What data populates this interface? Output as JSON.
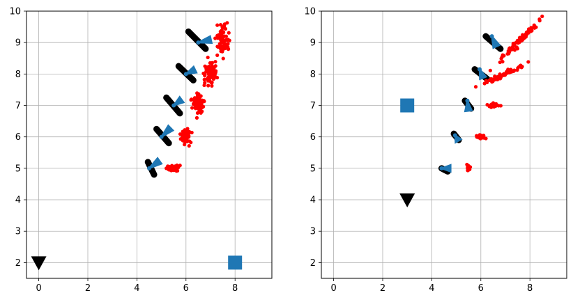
{
  "chart_data": [
    {
      "type": "scatter",
      "xlim": [
        -0.5,
        9.5
      ],
      "ylim": [
        1.5,
        10.0
      ],
      "xticks": [
        0,
        2,
        4,
        6,
        8
      ],
      "yticks": [
        2,
        3,
        4,
        5,
        6,
        7,
        8,
        9,
        10
      ],
      "grid": true,
      "markers": [
        {
          "shape": "triangle-down",
          "x": 0,
          "y": 2,
          "color": "#000000"
        },
        {
          "shape": "square",
          "x": 8,
          "y": 2,
          "color": "#1f77b4"
        }
      ],
      "clusters": [
        {
          "center": [
            5.5,
            5.0
          ],
          "spread": [
            0.14,
            0.08
          ],
          "angle": 0,
          "count": 45
        },
        {
          "center": [
            6.0,
            6.0
          ],
          "spread": [
            0.12,
            0.18
          ],
          "angle": 0,
          "count": 50
        },
        {
          "center": [
            6.5,
            7.0
          ],
          "spread": [
            0.12,
            0.28
          ],
          "angle": 0,
          "count": 70
        },
        {
          "center": [
            7.0,
            8.0
          ],
          "spread": [
            0.13,
            0.35
          ],
          "angle": 0,
          "count": 80
        },
        {
          "center": [
            7.5,
            9.1
          ],
          "spread": [
            0.12,
            0.4
          ],
          "angle": 0,
          "count": 80
        }
      ],
      "trajectories": [
        {
          "x1": 4.45,
          "y1": 5.2,
          "x2": 4.7,
          "y2": 4.8
        },
        {
          "x1": 4.8,
          "y1": 6.25,
          "x2": 5.3,
          "y2": 5.8
        },
        {
          "x1": 5.2,
          "y1": 7.25,
          "x2": 5.75,
          "y2": 6.75
        },
        {
          "x1": 5.7,
          "y1": 8.25,
          "x2": 6.3,
          "y2": 7.8
        },
        {
          "x1": 6.1,
          "y1": 9.35,
          "x2": 6.8,
          "y2": 8.8
        }
      ],
      "arrows": [
        {
          "x": 4.5,
          "y": 5.0,
          "dx": 0.45,
          "dy": 0.25
        },
        {
          "x": 5.0,
          "y": 6.0,
          "dx": 0.4,
          "dy": 0.3
        },
        {
          "x": 5.5,
          "y": 7.0,
          "dx": 0.35,
          "dy": 0.2
        },
        {
          "x": 6.0,
          "y": 8.0,
          "dx": 0.4,
          "dy": 0.15
        },
        {
          "x": 6.5,
          "y": 9.0,
          "dx": 0.55,
          "dy": 0.1
        }
      ],
      "colors": {
        "points": "#ff0000",
        "trajectory": "#000000",
        "arrow": "#1f77b4",
        "grid": "#b0b0b0"
      }
    },
    {
      "type": "scatter",
      "xlim": [
        -0.5,
        9.5
      ],
      "ylim": [
        1.5,
        10.0
      ],
      "xticks": [
        0,
        2,
        4,
        6,
        8
      ],
      "yticks": [
        2,
        3,
        4,
        5,
        6,
        7,
        8,
        9,
        10
      ],
      "grid": true,
      "markers": [
        {
          "shape": "triangle-down",
          "x": 3,
          "y": 4,
          "color": "#000000"
        },
        {
          "shape": "square",
          "x": 3,
          "y": 7,
          "color": "#1f77b4"
        }
      ],
      "clusters": [
        {
          "center": [
            5.5,
            5.0
          ],
          "spread": [
            0.03,
            0.07
          ],
          "angle": 0,
          "count": 25
        },
        {
          "center": [
            6.0,
            6.0
          ],
          "spread": [
            0.08,
            0.04
          ],
          "angle": 0,
          "count": 25
        },
        {
          "center": [
            6.5,
            7.0
          ],
          "spread": [
            0.12,
            0.05
          ],
          "angle": 0,
          "count": 35
        },
        {
          "center": [
            7.0,
            8.0
          ],
          "spread": [
            0.35,
            0.06
          ],
          "angle": 20,
          "count": 60
        },
        {
          "center": [
            7.5,
            9.0
          ],
          "spread": [
            0.5,
            0.07
          ],
          "angle": 38,
          "count": 80
        }
      ],
      "trajectories": [
        {
          "x1": 4.4,
          "y1": 5.0,
          "x2": 4.65,
          "y2": 4.9
        },
        {
          "x1": 4.9,
          "y1": 6.1,
          "x2": 5.1,
          "y2": 5.9
        },
        {
          "x1": 5.35,
          "y1": 7.15,
          "x2": 5.6,
          "y2": 6.9
        },
        {
          "x1": 5.75,
          "y1": 8.15,
          "x2": 6.25,
          "y2": 7.85
        },
        {
          "x1": 6.2,
          "y1": 9.2,
          "x2": 6.8,
          "y2": 8.8
        }
      ],
      "arrows": [
        {
          "x": 4.4,
          "y": 5.0,
          "dx": 0.4,
          "dy": 0.0
        },
        {
          "x": 4.95,
          "y": 6.05,
          "dx": 0.15,
          "dy": -0.2
        },
        {
          "x": 5.45,
          "y": 7.15,
          "dx": 0.05,
          "dy": -0.35
        },
        {
          "x": 5.95,
          "y": 8.15,
          "dx": 0.15,
          "dy": -0.3
        },
        {
          "x": 6.45,
          "y": 9.2,
          "dx": 0.2,
          "dy": -0.35
        }
      ],
      "colors": {
        "points": "#ff0000",
        "trajectory": "#000000",
        "arrow": "#1f77b4",
        "grid": "#b0b0b0"
      }
    }
  ]
}
